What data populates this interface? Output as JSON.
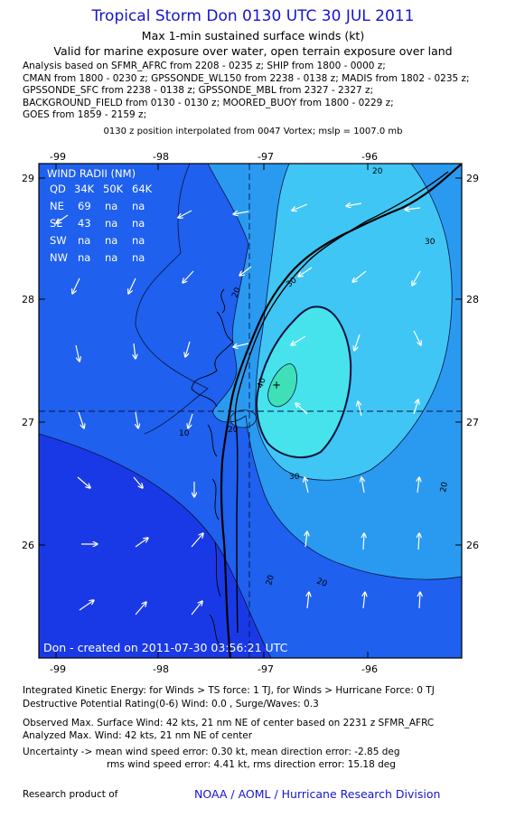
{
  "header": {
    "title": "Tropical Storm Don 0130 UTC 30 JUL 2011",
    "subtitle1": "Max 1-min sustained surface winds (kt)",
    "subtitle2": "Valid for marine exposure over water, open terrain exposure over land",
    "analysis_lines": [
      "Analysis based on SFMR_AFRC from 2208 - 0235 z; SHIP from 1800 - 0000 z;",
      "CMAN from 1800 - 0230 z; GPSSONDE_WL150 from 2238 - 0138 z; MADIS from 1802 - 0235 z;",
      "GPSSONDE_SFC from 2238 - 0138 z; GPSSONDE_MBL from 2327 - 2327 z;",
      "BACKGROUND_FIELD from 0130 - 0130 z; MOORED_BUOY from 1800 - 0229 z;",
      "GOES from 1859 - 2159 z;"
    ],
    "position_line": "0130 z position interpolated from 0047 Vortex; mslp = 1007.0 mb"
  },
  "map": {
    "lon_labels": [
      "-99",
      "-98",
      "-97",
      "-96"
    ],
    "lat_labels": [
      "29",
      "28",
      "27",
      "26"
    ],
    "wind_radii": {
      "title": "WIND RADII (NM)",
      "header": [
        "QD",
        "34K",
        "50K",
        "64K"
      ],
      "rows": [
        [
          "NE",
          "69",
          "na",
          "na"
        ],
        [
          "SE",
          "43",
          "na",
          "na"
        ],
        [
          "SW",
          "na",
          "na",
          "na"
        ],
        [
          "NW",
          "na",
          "na",
          "na"
        ]
      ]
    },
    "contour_labels": [
      "20",
      "30",
      "40",
      "10",
      "20",
      "20",
      "30",
      "20",
      "20",
      "20",
      "30"
    ],
    "center_marker": "+",
    "created_text": "Don - created on 2011-07-30 03:56:21 UTC",
    "colors": {
      "c0": "#1a39e6",
      "c10": "#1f60ee",
      "c20": "#2a9af0",
      "c30": "#3fc6f5",
      "c35": "#46e3ec",
      "c40": "#3fe0b8"
    }
  },
  "footer": {
    "line1": "Integrated Kinetic Energy:  for Winds > TS force: 1 TJ,  for Winds > Hurricane Force: 0 TJ",
    "line2": "Destructive Potential Rating(0-6)   Wind: 0.0 , Surge/Waves: 0.3",
    "line3": "Observed Max. Surface Wind: 42 kts, 21 nm NE of center based on 2231 z SFMR_AFRC",
    "line4": "Analyzed Max. Wind: 42 kts, 21 nm NE of center",
    "line5": "Uncertainty -> mean wind speed error: 0.30 kt,   mean direction error:  -2.85 deg",
    "line6": "rms wind speed error: 4.41 kt,   rms direction error: 15.18 deg",
    "credit_left": "Research product of",
    "credit_right": "NOAA / AOML / Hurricane Research Division"
  }
}
